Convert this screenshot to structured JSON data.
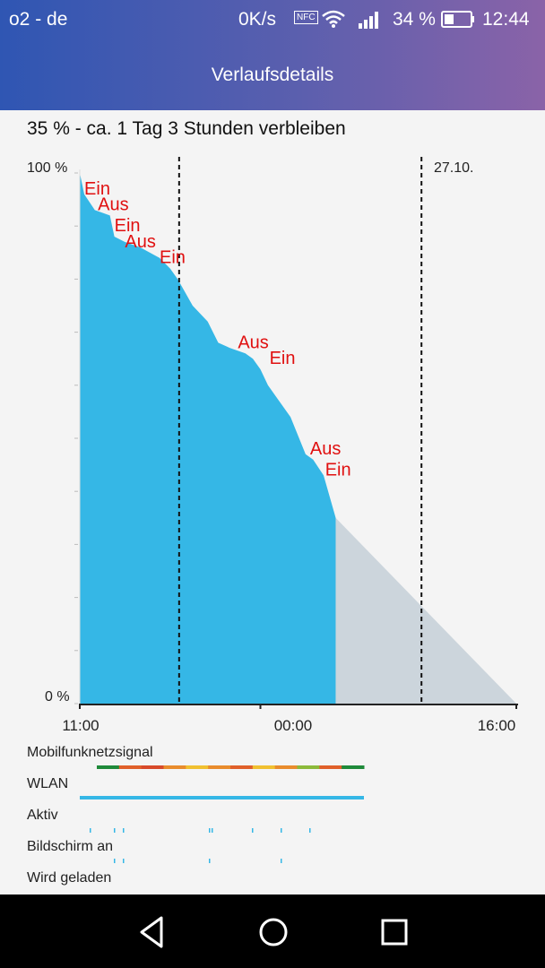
{
  "status_bar": {
    "carrier": "o2 - de",
    "speed": "0K/s",
    "nfc": "NFC",
    "battery_percent": "34 %",
    "time": "12:44"
  },
  "header": {
    "title": "Verlaufsdetails"
  },
  "summary": "35 % - ca. 1 Tag 3 Stunden verbleiben",
  "chart_data": {
    "type": "area",
    "title": "",
    "x_ticks": [
      "11:00",
      "00:00",
      "16:00"
    ],
    "y_ticks": [
      "100 %",
      "0 %"
    ],
    "date_marker": "27.10.",
    "series": [
      {
        "name": "",
        "color": "#35b7e6",
        "points": [
          [
            11.0,
            100
          ],
          [
            11.3,
            96
          ],
          [
            12.0,
            93
          ],
          [
            13.0,
            92
          ],
          [
            13.3,
            88
          ],
          [
            14.0,
            87
          ],
          [
            15.0,
            86
          ],
          [
            16.3,
            84
          ],
          [
            17.0,
            82
          ],
          [
            17.5,
            80
          ],
          [
            18.5,
            75
          ],
          [
            19.5,
            72
          ],
          [
            20.2,
            68
          ],
          [
            21.0,
            67
          ],
          [
            22.0,
            66
          ],
          [
            22.5,
            65
          ],
          [
            23.0,
            63
          ],
          [
            23.5,
            60
          ],
          [
            24.0,
            58
          ],
          [
            25.0,
            54
          ],
          [
            26.0,
            47
          ],
          [
            26.5,
            46
          ],
          [
            27.2,
            43
          ],
          [
            28.0,
            35
          ]
        ]
      },
      {
        "name": "",
        "color": "#ccd5dc",
        "points": [
          [
            28.0,
            35
          ],
          [
            40.0,
            0
          ]
        ]
      }
    ],
    "annotations": [
      {
        "text": "Ein",
        "x": 11.3,
        "y": 97
      },
      {
        "text": "Aus",
        "x": 12.2,
        "y": 94
      },
      {
        "text": "Ein",
        "x": 13.3,
        "y": 90
      },
      {
        "text": "Aus",
        "x": 14.0,
        "y": 87
      },
      {
        "text": "Ein",
        "x": 16.3,
        "y": 84
      },
      {
        "text": "Aus",
        "x": 21.5,
        "y": 68
      },
      {
        "text": "Ein",
        "x": 23.6,
        "y": 65
      },
      {
        "text": "Aus",
        "x": 26.3,
        "y": 48
      },
      {
        "text": "Ein",
        "x": 27.3,
        "y": 44
      }
    ],
    "annotation_color": "#e01010",
    "dashed_markers_x": [
      17.6,
      33.7
    ],
    "x_range": [
      11.0,
      40.0
    ],
    "y_range": [
      0,
      100
    ]
  },
  "signals": [
    {
      "label": "Mobilfunknetzsignal"
    },
    {
      "label": "WLAN"
    },
    {
      "label": "Aktiv"
    },
    {
      "label": "Bildschirm an"
    },
    {
      "label": "Wird geladen"
    }
  ],
  "mobile_signal_colors": [
    "#1f8a3a",
    "#e0602a",
    "#d84a2a",
    "#e98c2c",
    "#f0c030",
    "#e98c2c",
    "#e0602a",
    "#f0c030",
    "#e98c2c",
    "#8cba3a",
    "#e0602a",
    "#1f8a3a"
  ],
  "wlan_color": "#35b7e6"
}
